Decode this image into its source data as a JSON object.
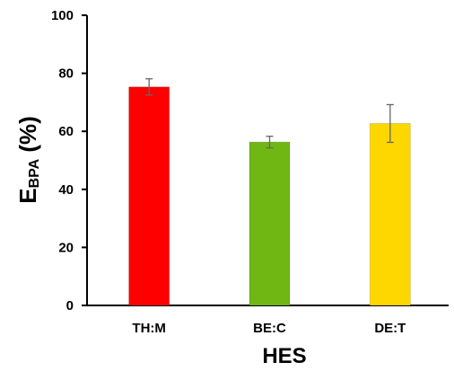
{
  "chart_data": {
    "type": "bar",
    "categories": [
      "TH:M",
      "BE:C",
      "DE:T"
    ],
    "values": [
      75.3,
      56.3,
      62.7
    ],
    "errors": [
      2.8,
      2.0,
      6.5
    ],
    "colors": [
      "#ff0000",
      "#70b714",
      "#ffd700"
    ],
    "xlabel": "HES",
    "ylabel_main": "E",
    "ylabel_sub": "BPA",
    "ylabel_unit": " (%)",
    "ylim": [
      0,
      100
    ],
    "yticks": [
      "0",
      "20",
      "40",
      "60",
      "80",
      "100"
    ],
    "grid": false,
    "legend": "none"
  }
}
